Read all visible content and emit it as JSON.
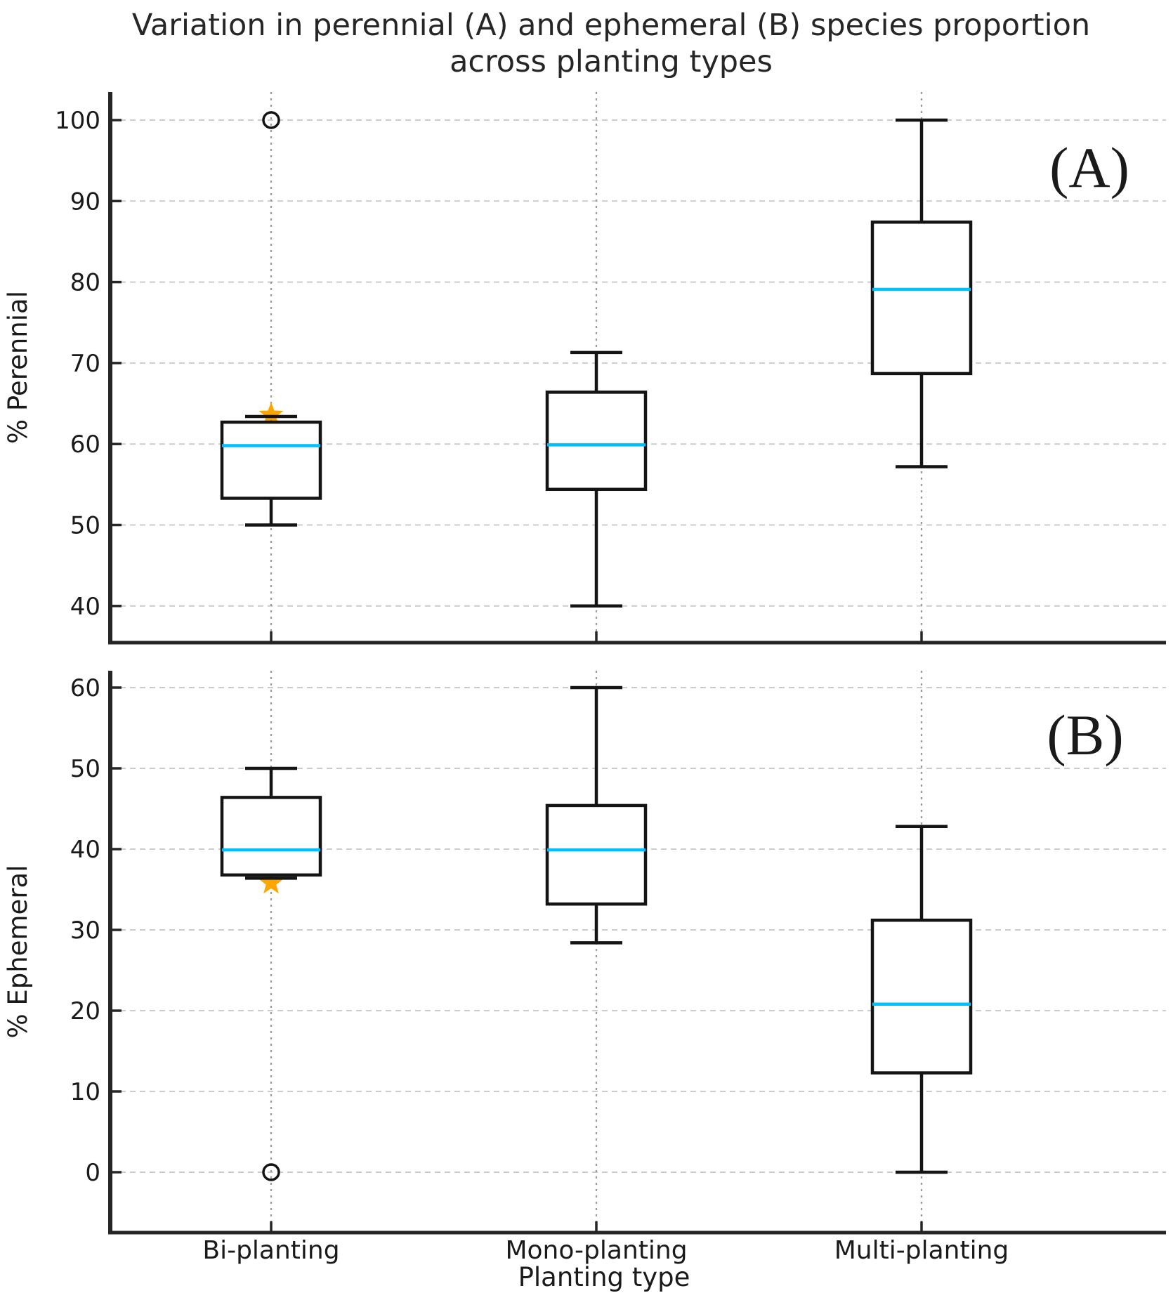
{
  "title": {
    "line1": "Variation in perennial (A) and ephemeral (B) species proportion",
    "line2": "across planting types"
  },
  "xlabel": "Planting type",
  "colors": {
    "median_line": "#00BFFF",
    "mean_marker": "#FFA500",
    "box_edge": "#141414",
    "spine": "#262626",
    "grid_horizontal": "#cccccc",
    "grid_vertical": "#9a9a9a",
    "text": "#1a1a1a",
    "background": "#ffffff"
  },
  "chart_data": [
    {
      "type": "box",
      "panel_label": "(A)",
      "ylabel": "% Perennial",
      "ylim": [
        36,
        103.5
      ],
      "yticks": [
        40,
        50,
        60,
        70,
        80,
        90,
        100
      ],
      "grid": "on",
      "categories": [
        "Bi-planting",
        "Mono-planting",
        "Multi-planting"
      ],
      "boxes": [
        {
          "category": "Bi-planting",
          "whislo": 50,
          "q1": 53.3,
          "med": 59.8,
          "q3": 62.7,
          "whishi": 63.4,
          "mean": 63.6,
          "outliers": [
            100
          ]
        },
        {
          "category": "Mono-planting",
          "whislo": 40,
          "q1": 54.4,
          "med": 59.9,
          "q3": 66.4,
          "whishi": 71.3,
          "mean": null,
          "outliers": []
        },
        {
          "category": "Multi-planting",
          "whislo": 57.2,
          "q1": 68.7,
          "med": 79.1,
          "q3": 87.4,
          "whishi": 100,
          "mean": null,
          "outliers": []
        }
      ]
    },
    {
      "type": "box",
      "panel_label": "(B)",
      "ylabel": "% Ephemeral",
      "ylim": [
        -7.5,
        62.1
      ],
      "yticks": [
        0,
        10,
        20,
        30,
        40,
        50,
        60
      ],
      "grid": "on",
      "categories": [
        "Bi-planting",
        "Mono-planting",
        "Multi-planting"
      ],
      "boxes": [
        {
          "category": "Bi-planting",
          "whislo": 36.4,
          "q1": 36.8,
          "med": 39.9,
          "q3": 46.4,
          "whishi": 50,
          "mean": 35.8,
          "outliers": [
            0
          ]
        },
        {
          "category": "Mono-planting",
          "whislo": 28.4,
          "q1": 33.2,
          "med": 39.9,
          "q3": 45.4,
          "whishi": 60,
          "mean": null,
          "outliers": []
        },
        {
          "category": "Multi-planting",
          "whislo": 0,
          "q1": 12.3,
          "med": 20.8,
          "q3": 31.2,
          "whishi": 42.8,
          "mean": null,
          "outliers": []
        }
      ]
    }
  ]
}
